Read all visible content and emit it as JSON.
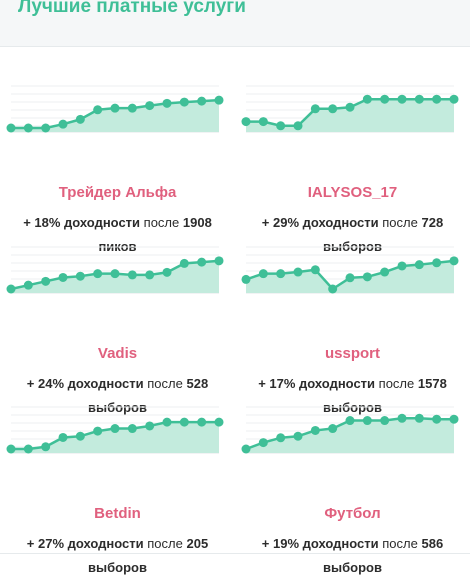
{
  "header": {
    "title": "Лучшие платные услуги"
  },
  "colors": {
    "accent": "#3fbf97",
    "fill": "#c3ebdd",
    "name": "#e0607e"
  },
  "labels": {
    "word_after": "после"
  },
  "services": [
    {
      "name": "Трейдер Альфа",
      "yield": "+ 18% доходности",
      "count": "1908",
      "unit": "пиков",
      "chart_data": {
        "type": "line",
        "values": [
          0,
          0,
          0,
          0.12,
          0.27,
          0.57,
          0.62,
          0.62,
          0.7,
          0.77,
          0.81,
          0.84,
          0.87
        ]
      }
    },
    {
      "name": "IALYSOS_17",
      "yield": "+ 29% доходности",
      "count": "728",
      "unit": "выборов",
      "chart_data": {
        "type": "line",
        "values": [
          0.2,
          0.2,
          0.07,
          0.07,
          0.6,
          0.6,
          0.65,
          0.9,
          0.9,
          0.9,
          0.9,
          0.9,
          0.9
        ]
      }
    },
    {
      "name": "Vadis",
      "yield": "+ 24% доходности",
      "count": "528",
      "unit": "выборов",
      "chart_data": {
        "type": "line",
        "values": [
          0,
          0.12,
          0.24,
          0.36,
          0.4,
          0.48,
          0.48,
          0.44,
          0.44,
          0.52,
          0.8,
          0.84,
          0.88
        ]
      }
    },
    {
      "name": "ussport",
      "yield": "+ 17% доходности",
      "count": "1578",
      "unit": "выборов",
      "chart_data": {
        "type": "line",
        "values": [
          0.3,
          0.48,
          0.48,
          0.53,
          0.6,
          0,
          0.35,
          0.38,
          0.53,
          0.72,
          0.76,
          0.82,
          0.88
        ]
      }
    },
    {
      "name": "Betdin",
      "yield": "+ 27% доходности",
      "count": "205",
      "unit": "выборов",
      "chart_data": {
        "type": "line",
        "values": [
          0,
          0,
          0.07,
          0.36,
          0.4,
          0.56,
          0.64,
          0.64,
          0.72,
          0.84,
          0.84,
          0.84,
          0.84
        ]
      }
    },
    {
      "name": "Футбол",
      "yield": "+ 19% доходности",
      "count": "586",
      "unit": "выборов",
      "chart_data": {
        "type": "line",
        "values": [
          0,
          0.2,
          0.35,
          0.4,
          0.58,
          0.64,
          0.89,
          0.89,
          0.89,
          0.96,
          0.96,
          0.93,
          0.93
        ]
      }
    }
  ]
}
